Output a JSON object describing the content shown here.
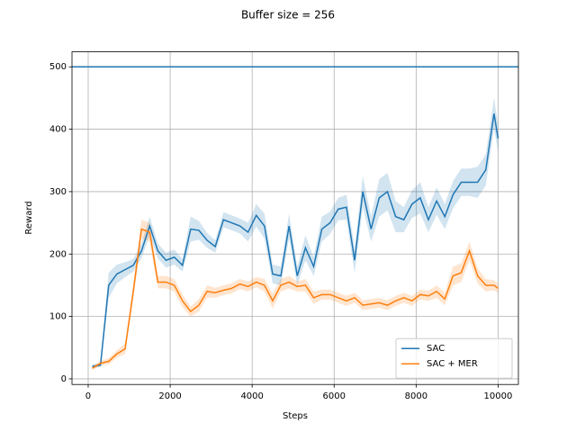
{
  "chart_data": {
    "type": "line",
    "title": "Buffer size = 256",
    "xlabel": "Steps",
    "ylabel": "Reward",
    "x": [
      100,
      300,
      500,
      700,
      900,
      1100,
      1300,
      1500,
      1700,
      1900,
      2100,
      2300,
      2500,
      2700,
      2900,
      3100,
      3300,
      3500,
      3700,
      3900,
      4100,
      4300,
      4500,
      4700,
      4900,
      5100,
      5300,
      5500,
      5700,
      5900,
      6100,
      6300,
      6500,
      6700,
      6900,
      7100,
      7300,
      7500,
      7700,
      7900,
      8100,
      8300,
      8500,
      8700,
      8900,
      9100,
      9300,
      9500,
      9700,
      9900,
      10000
    ],
    "series": [
      {
        "name": "SAC",
        "color": "#1f77b4",
        "values": [
          20,
          22,
          150,
          168,
          175,
          182,
          205,
          245,
          205,
          190,
          195,
          182,
          240,
          238,
          222,
          212,
          255,
          250,
          245,
          235,
          262,
          245,
          168,
          165,
          245,
          165,
          210,
          180,
          240,
          250,
          272,
          275,
          190,
          300,
          240,
          290,
          300,
          260,
          255,
          280,
          290,
          255,
          285,
          260,
          295,
          315,
          315,
          315,
          335,
          425,
          385
        ],
        "lower": [
          17,
          19,
          130,
          153,
          163,
          172,
          193,
          230,
          193,
          178,
          183,
          172,
          220,
          223,
          210,
          202,
          243,
          238,
          233,
          220,
          244,
          225,
          153,
          150,
          225,
          150,
          190,
          165,
          220,
          232,
          254,
          255,
          170,
          275,
          220,
          260,
          270,
          235,
          235,
          258,
          265,
          235,
          263,
          240,
          273,
          293,
          293,
          290,
          310,
          400,
          363
        ],
        "upper": [
          23,
          25,
          170,
          183,
          187,
          192,
          217,
          260,
          217,
          202,
          207,
          192,
          260,
          253,
          234,
          222,
          267,
          262,
          257,
          250,
          280,
          265,
          183,
          180,
          265,
          180,
          230,
          195,
          260,
          268,
          290,
          295,
          210,
          325,
          260,
          320,
          330,
          285,
          275,
          302,
          315,
          275,
          307,
          280,
          317,
          337,
          337,
          340,
          360,
          450,
          407
        ]
      },
      {
        "name": "SAC + MER",
        "color": "#ff7f0e",
        "values": [
          17,
          25,
          28,
          40,
          48,
          140,
          240,
          235,
          155,
          155,
          150,
          125,
          108,
          118,
          140,
          138,
          142,
          145,
          152,
          148,
          155,
          150,
          125,
          150,
          155,
          148,
          150,
          130,
          135,
          135,
          130,
          125,
          130,
          118,
          120,
          122,
          118,
          125,
          130,
          125,
          135,
          133,
          140,
          128,
          165,
          170,
          205,
          165,
          150,
          150,
          145
        ],
        "lower": [
          14,
          21,
          23,
          34,
          40,
          128,
          225,
          220,
          145,
          145,
          140,
          115,
          100,
          108,
          130,
          130,
          134,
          137,
          144,
          140,
          147,
          140,
          113,
          140,
          145,
          140,
          140,
          120,
          127,
          127,
          122,
          117,
          122,
          110,
          112,
          114,
          110,
          117,
          122,
          117,
          127,
          125,
          130,
          118,
          150,
          155,
          190,
          153,
          140,
          142,
          137
        ],
        "upper": [
          20,
          29,
          33,
          46,
          56,
          152,
          255,
          250,
          165,
          165,
          160,
          135,
          116,
          128,
          150,
          146,
          150,
          153,
          160,
          156,
          163,
          160,
          137,
          160,
          165,
          156,
          160,
          140,
          143,
          143,
          138,
          133,
          138,
          126,
          128,
          130,
          126,
          133,
          138,
          133,
          143,
          141,
          150,
          138,
          180,
          185,
          220,
          177,
          160,
          158,
          153
        ]
      }
    ],
    "hline": {
      "value": 500,
      "color": "#1f77b4"
    },
    "xlim": [
      -395,
      10495
    ],
    "ylim": [
      -9,
      524
    ],
    "xticks": [
      0,
      2000,
      4000,
      6000,
      8000,
      10000
    ],
    "yticks": [
      0,
      100,
      200,
      300,
      400,
      500
    ],
    "grid": true,
    "legend": "lower right"
  }
}
